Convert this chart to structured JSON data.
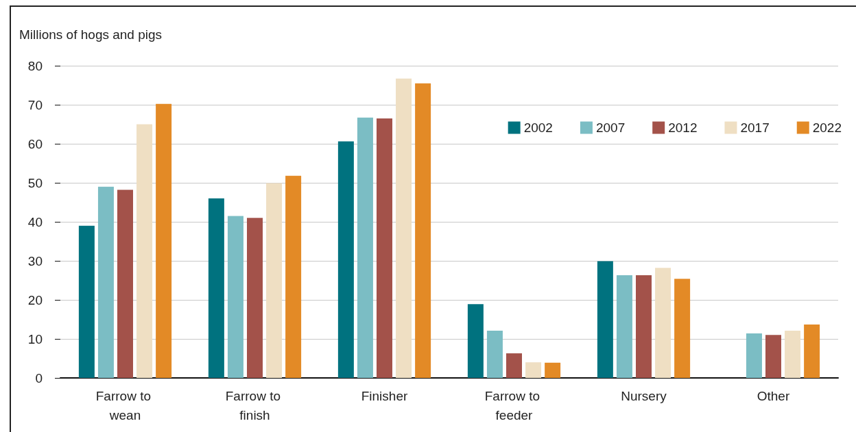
{
  "chart_data": {
    "type": "bar",
    "ylabel": "Millions of hogs and pigs",
    "categories": [
      "Farrow to wean",
      "Farrow to finish",
      "Finisher",
      "Farrow to feeder",
      "Nursery",
      "Other"
    ],
    "series": [
      {
        "name": "2002",
        "color": "#00727f",
        "values": [
          39,
          46,
          60.6,
          18.9,
          29.9,
          null
        ]
      },
      {
        "name": "2007",
        "color": "#7bbdc4",
        "values": [
          49,
          41.5,
          66.7,
          12.1,
          26.3,
          11.4
        ]
      },
      {
        "name": "2012",
        "color": "#a3524a",
        "values": [
          48.2,
          41,
          66.5,
          6.3,
          26.3,
          11
        ]
      },
      {
        "name": "2017",
        "color": "#efdfc3",
        "values": [
          65,
          49.9,
          76.7,
          4,
          28.2,
          12.1
        ]
      },
      {
        "name": "2022",
        "color": "#e38a26",
        "values": [
          70.2,
          51.8,
          75.5,
          3.9,
          25.4,
          13.7
        ]
      }
    ],
    "ylim": [
      0,
      80
    ],
    "yticks": [
      0,
      10,
      20,
      30,
      40,
      50,
      60,
      70,
      80
    ],
    "grid": "y",
    "legend": "top right"
  }
}
